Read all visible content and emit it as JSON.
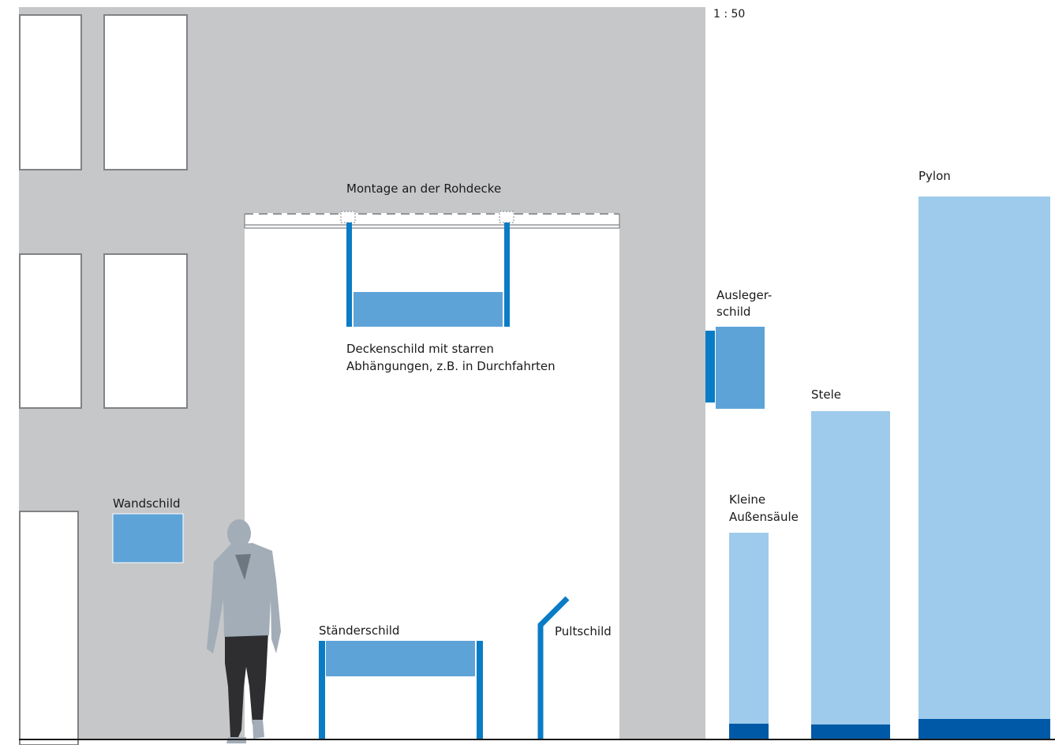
{
  "scale": "1 : 50",
  "labels": {
    "mounting": "Montage an der Rohdecke",
    "ceiling_sign_line1": "Deckenschild mit starren",
    "ceiling_sign_line2": "Abhängungen, z.B. in Durchfahrten",
    "wall_sign": "Wandschild",
    "stand_sign": "Ständerschild",
    "desk_sign": "Pultschild",
    "projecting_sign_line1": "Ausleger-",
    "projecting_sign_line2": "schild",
    "small_column_line1": "Kleine",
    "small_column_line2": "Außensäule",
    "stele": "Stele",
    "pylon": "Pylon"
  },
  "colors": {
    "facade": "#c6c7c9",
    "window_frame": "#808285",
    "sign_blue": "#5ea3d8",
    "post_blue": "#0a7cc6",
    "light_blue": "#9ecbeb",
    "dark_blue": "#0059a6",
    "ground": "#1a1a1a",
    "person_body": "#a2adb7",
    "person_legs": "#2e2e30"
  }
}
